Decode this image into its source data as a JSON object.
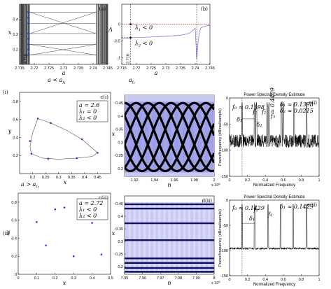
{
  "chart_data": [
    {
      "id": "a",
      "type": "bifurcation",
      "tag": "(a)",
      "xlabel": "a",
      "ylabel": "x",
      "xlim": [
        2.715,
        2.745
      ],
      "ylim": [
        0.1,
        0.5
      ],
      "xticks": [
        "2.715",
        "2.72",
        "2.725",
        "2.73",
        "2.735",
        "2.74",
        "2.745"
      ],
      "yticks": [
        "0.2",
        "0.3",
        "0.4"
      ],
      "marker_label": "2.718",
      "dashed_x": 2.718,
      "caption": "a < a",
      "caption_sub": "f",
      "caption_sub2": "1",
      "branches": [
        {
          "x": [
            2.7185,
            2.741
          ],
          "y": [
            0.447,
            0.447
          ]
        },
        {
          "x": [
            2.7185,
            2.741
          ],
          "y": [
            0.372,
            0.372
          ]
        },
        {
          "x": [
            2.7185,
            2.741
          ],
          "y": [
            0.305,
            0.305
          ]
        },
        {
          "x": [
            2.7185,
            2.741
          ],
          "y": [
            0.233,
            0.233
          ]
        },
        {
          "x": [
            2.7185,
            2.741
          ],
          "y": [
            0.162,
            0.162
          ]
        },
        {
          "x": [
            2.7185,
            2.741
          ],
          "y": [
            0.447,
            0.305
          ]
        },
        {
          "x": [
            2.7185,
            2.741
          ],
          "y": [
            0.305,
            0.447
          ]
        },
        {
          "x": [
            2.7185,
            2.741
          ],
          "y": [
            0.233,
            0.162
          ]
        },
        {
          "x": [
            2.7185,
            2.741
          ],
          "y": [
            0.162,
            0.233
          ]
        }
      ],
      "points": [
        0.447,
        0.372,
        0.305,
        0.233,
        0.162,
        0.41,
        0.27,
        0.2
      ]
    },
    {
      "id": "b",
      "type": "line",
      "tag": "(b)",
      "ylabel": "Λ",
      "xlabel": "a",
      "xlim": [
        2.715,
        2.745
      ],
      "ylim": [
        -1.2,
        0.6
      ],
      "xticks": [
        "2.715",
        "2.72",
        "2.725",
        "2.73",
        "2.735",
        "2.74",
        "2.745"
      ],
      "yticks": [
        "0",
        "-0.5",
        "-1"
      ],
      "marker_label": "2.718",
      "annot1": "λ",
      "annot1_sub": "1",
      "annot1_rest": " < 0",
      "annot2": "λ",
      "annot2_sub": "2",
      "annot2_rest": " < 0",
      "caption": "a",
      "caption_sub": "f",
      "caption_sub2": "1",
      "series": [
        {
          "name": "λ1",
          "color": "#e02020",
          "x": [
            2.715,
            2.745
          ],
          "y": [
            0.0,
            0.0
          ]
        },
        {
          "name": "λ2",
          "color": "#6a6ae0",
          "x": [
            2.715,
            2.718,
            2.72,
            2.725,
            2.73,
            2.735,
            2.738,
            2.74,
            2.7405,
            2.741,
            2.7415,
            2.742,
            2.745
          ],
          "y": [
            -0.44,
            -0.4,
            -0.4,
            -0.38,
            -0.36,
            -0.33,
            -0.27,
            -0.12,
            -1.05,
            -0.5,
            -0.2,
            -0.1,
            -0.02
          ]
        }
      ]
    },
    {
      "id": "ci",
      "type": "scatter",
      "tag": "c(i)",
      "row_label": "(i)",
      "xlabel": "x",
      "ylabel": "y",
      "xlim": [
        0.15,
        0.5
      ],
      "ylim": [
        0.0,
        0.9
      ],
      "xticks": [
        "0.2",
        "0.25",
        "0.3",
        "0.35",
        "0.4",
        "0.45"
      ],
      "yticks": [
        "0.2",
        "0.4",
        "0.6",
        "0.8"
      ],
      "legend": [
        "a = 2.6",
        "λ₁ = 0",
        "λ₂ < 0"
      ],
      "closed_curve": {
        "x": [
          0.22,
          0.27,
          0.33,
          0.39,
          0.43,
          0.45,
          0.43,
          0.37,
          0.3,
          0.24,
          0.195,
          0.19,
          0.2,
          0.22
        ],
        "y": [
          0.61,
          0.56,
          0.48,
          0.38,
          0.28,
          0.23,
          0.19,
          0.17,
          0.16,
          0.17,
          0.22,
          0.3,
          0.45,
          0.61
        ]
      },
      "points": {
        "x": [
          0.22,
          0.27,
          0.39,
          0.45,
          0.37,
          0.26,
          0.195,
          0.19
        ],
        "y": [
          0.61,
          0.56,
          0.38,
          0.23,
          0.17,
          0.165,
          0.22,
          0.36
        ]
      }
    },
    {
      "id": "di",
      "type": "time-series",
      "tag": "d(i)",
      "xlabel": "n",
      "ylabel": "x",
      "xlim": [
        1.91,
        2.0
      ],
      "ylim": [
        0.17,
        0.48
      ],
      "xticks": [
        "1.92",
        "1.94",
        "1.96",
        "1.98",
        "2"
      ],
      "exponent": "x 10",
      "exponent_power": "5",
      "yticks": [
        "0.2",
        "0.25",
        "0.3",
        "0.35",
        "0.4",
        "0.45"
      ]
    },
    {
      "id": "ei",
      "type": "spectrum",
      "tag": "e(i)",
      "title": "Power Spectral Density Estimate",
      "xlabel": "Normalized Frequency",
      "ylabel": "Power/frequency (dB/rad/sample)",
      "xlim": [
        0,
        1
      ],
      "ylim": [
        -150,
        0
      ],
      "xticks": [
        "0",
        "0.2",
        "0.4",
        "0.6",
        "0.8",
        "1"
      ],
      "yticks": [
        "0",
        "-50",
        "-100",
        "-150"
      ],
      "annotations": [
        "f₀ ≈ 0.1398",
        "δ₁ ≈ 0.1398",
        "δ₂ ≈ 0.0215",
        "δ₁",
        "δ₂",
        "f₁",
        "f₂",
        "f₃",
        "≈ 0.4409"
      ],
      "peaks": [
        0.14,
        0.28,
        0.3,
        0.42,
        0.44,
        0.58,
        0.6,
        0.72,
        0.86
      ]
    },
    {
      "id": "cii",
      "type": "scatter",
      "tag": "c(ii)",
      "row_label": "(ii)",
      "caption": "a > a",
      "caption_sub": "f",
      "caption_sub2": "1",
      "xlabel": "x",
      "ylabel": "y",
      "xlim": [
        0.0,
        0.5
      ],
      "ylim": [
        0.0,
        0.9
      ],
      "xticks": [
        "0",
        "0.1",
        "0.2",
        "0.3",
        "0.4",
        "0.5"
      ],
      "yticks": [
        "0",
        "0.2",
        "0.4",
        "0.6",
        "0.8"
      ],
      "legend": [
        "a = 2.72",
        "λ₁ < 0",
        "λ₂ < 0"
      ],
      "points": {
        "x": [
          0.1,
          0.15,
          0.2,
          0.3,
          0.4,
          0.45,
          0.25
        ],
        "y": [
          0.58,
          0.32,
          0.72,
          0.2,
          0.57,
          0.22,
          0.74
        ]
      }
    },
    {
      "id": "dii",
      "type": "time-series",
      "tag": "d(ii)",
      "xlabel": "n",
      "ylabel": "x",
      "xlim": [
        7.95,
        8.0
      ],
      "ylim": [
        0.17,
        0.48
      ],
      "xticks": [
        "7.95",
        "7.96",
        "7.97",
        "7.98",
        "7.99",
        "8"
      ],
      "exponent": "x 10",
      "exponent_power": "5",
      "yticks": [
        "0.2",
        "0.25",
        "0.3",
        "0.35",
        "0.4",
        "0.45"
      ],
      "levels": [
        0.447,
        0.43,
        0.372,
        0.305,
        0.233,
        0.215,
        0.195,
        0.18
      ]
    },
    {
      "id": "eii",
      "type": "spectrum",
      "tag": "e(ii)",
      "title": "Power Spectral Density Estimate",
      "xlabel": "Normalized Frequency",
      "ylabel": "Power/frequency (dB/rad/sample)",
      "xlim": [
        0,
        1
      ],
      "ylim": [
        -150,
        0
      ],
      "xticks": [
        "0",
        "0.2",
        "0.4",
        "0.6",
        "0.8",
        "1"
      ],
      "yticks": [
        "0",
        "-50",
        "-100",
        "-150"
      ],
      "annotations": [
        "f₀ ≈ 0.1429",
        "δ₁ ≈ 0.1429",
        "δ₁",
        "f₁",
        "f₂"
      ],
      "peaks": [
        0.14,
        0.28,
        0.43,
        0.57,
        0.71,
        0.86
      ]
    }
  ]
}
